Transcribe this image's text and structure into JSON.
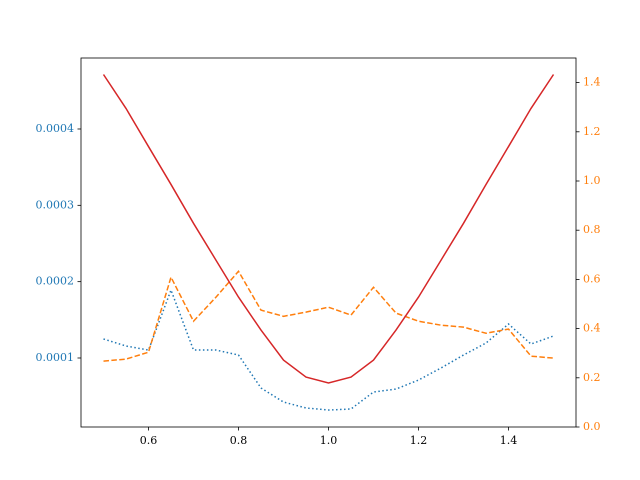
{
  "chart_data": {
    "type": "line",
    "x": [
      0.5,
      0.55,
      0.6,
      0.65,
      0.7,
      0.75,
      0.8,
      0.85,
      0.9,
      0.95,
      1.0,
      1.05,
      1.1,
      1.15,
      1.2,
      1.25,
      1.3,
      1.35,
      1.4,
      1.45,
      1.5
    ],
    "series": [
      {
        "color": "#1f77b4",
        "dash": "dotted",
        "axis": "y",
        "values": [
          0.0001249,
          0.0001157,
          0.0001104,
          0.000189,
          0.0001104,
          0.0001104,
          0.0001039,
          6.07e-05,
          4.23e-05,
          3.45e-05,
          3.18e-05,
          3.32e-05,
          5.54e-05,
          5.93e-05,
          7.11e-05,
          8.69e-05,
          0.0001039,
          0.0001196,
          0.0001445,
          0.0001183,
          0.0001288
        ]
      },
      {
        "color": "#ff7f0e",
        "dash": "dashed",
        "axis": "y2",
        "values": [
          0.268,
          0.276,
          0.304,
          0.609,
          0.43,
          0.528,
          0.633,
          0.475,
          0.45,
          0.467,
          0.487,
          0.455,
          0.568,
          0.463,
          0.43,
          0.414,
          0.406,
          0.381,
          0.398,
          0.288,
          0.28
        ]
      },
      {
        "color": "#d62728",
        "dash": "solid",
        "axis": "y2",
        "values": [
          1.433,
          1.295,
          1.14,
          0.986,
          0.828,
          0.678,
          0.528,
          0.394,
          0.272,
          0.203,
          0.179,
          0.203,
          0.272,
          0.394,
          0.528,
          0.678,
          0.828,
          0.986,
          1.14,
          1.295,
          1.433
        ]
      }
    ],
    "xlim": [
      0.45,
      1.55
    ],
    "xticks": [
      0.6,
      0.8,
      {
        "value": 1.0,
        "label": "1.0"
      },
      1.2,
      1.4
    ],
    "ylim": [
      9.6e-06,
      0.000493
    ],
    "yticks": [
      0.0001,
      0.0002,
      0.0003,
      0.0004
    ],
    "y_tick_color": "#1f77b4",
    "y2lim": [
      0,
      1.5
    ],
    "y2ticks": [
      {
        "value": 0,
        "label": "0.0"
      },
      0.2,
      0.4,
      0.6,
      0.8,
      {
        "value": 1.0,
        "label": "1.0"
      },
      1.2,
      1.4
    ],
    "y2_tick_color": "#ff7f0e",
    "grid": false
  }
}
